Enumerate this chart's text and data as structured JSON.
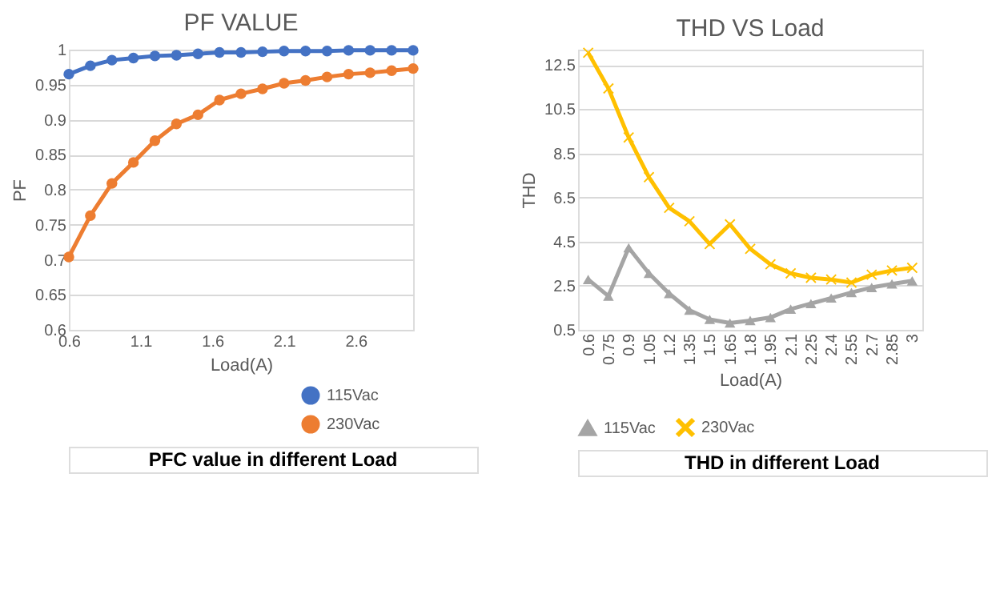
{
  "chart_data": [
    {
      "type": "line",
      "title": "PF VALUE",
      "xlabel": "Load(A)",
      "ylabel": "PF",
      "x": [
        0.6,
        0.75,
        0.9,
        1.05,
        1.2,
        1.35,
        1.5,
        1.65,
        1.8,
        1.95,
        2.1,
        2.25,
        2.4,
        2.55,
        2.7,
        2.85,
        3.0
      ],
      "series": [
        {
          "name": "115Vac",
          "color": "#4472c4",
          "marker": "circle",
          "values": [
            0.965,
            0.977,
            0.985,
            0.988,
            0.991,
            0.992,
            0.994,
            0.996,
            0.996,
            0.997,
            0.998,
            0.998,
            0.998,
            0.999,
            0.999,
            0.999,
            0.999
          ]
        },
        {
          "name": "230Vac",
          "color": "#ed7d31",
          "marker": "circle",
          "values": [
            0.704,
            0.763,
            0.809,
            0.839,
            0.87,
            0.894,
            0.907,
            0.928,
            0.937,
            0.944,
            0.952,
            0.956,
            0.961,
            0.965,
            0.967,
            0.97,
            0.973
          ]
        }
      ],
      "xlim": [
        0.6,
        3.0
      ],
      "xticks": [
        0.6,
        1.1,
        1.6,
        2.1,
        2.6
      ],
      "ylim": [
        0.6,
        1.0
      ],
      "yticks": [
        0.6,
        0.65,
        0.7,
        0.75,
        0.8,
        0.85,
        0.9,
        0.95,
        1
      ],
      "grid": "y",
      "legend": "bottom right",
      "annotations": [
        "PFC value in different Load"
      ]
    },
    {
      "type": "line",
      "title": "THD VS Load",
      "xlabel": "Load(A)",
      "ylabel": "THD",
      "categories": [
        "0.6",
        "0.75",
        "0.9",
        "1.05",
        "1.2",
        "1.35",
        "1.5",
        "1.65",
        "1.8",
        "1.95",
        "2.1",
        "2.25",
        "2.4",
        "2.55",
        "2.7",
        "2.85",
        "3"
      ],
      "series": [
        {
          "name": "115Vac",
          "color": "#a5a5a5",
          "marker": "triangle",
          "values": [
            2.78,
            2.03,
            4.22,
            3.06,
            2.14,
            1.39,
            0.97,
            0.81,
            0.92,
            1.06,
            1.44,
            1.69,
            1.94,
            2.19,
            2.42,
            2.58,
            2.72
          ]
        },
        {
          "name": "230Vac",
          "color": "#ffc000",
          "marker": "cross",
          "values": [
            13.06,
            11.44,
            9.22,
            7.42,
            6.03,
            5.42,
            4.39,
            5.28,
            4.17,
            3.47,
            3.06,
            2.86,
            2.78,
            2.64,
            3.0,
            3.19,
            3.31
          ]
        }
      ],
      "ylim": [
        0.5,
        13.2
      ],
      "yticks": [
        0.5,
        2.5,
        4.5,
        6.5,
        8.5,
        10.5,
        12.5
      ],
      "grid": "y",
      "legend": "bottom",
      "annotations": [
        "THD in different Load"
      ]
    }
  ]
}
